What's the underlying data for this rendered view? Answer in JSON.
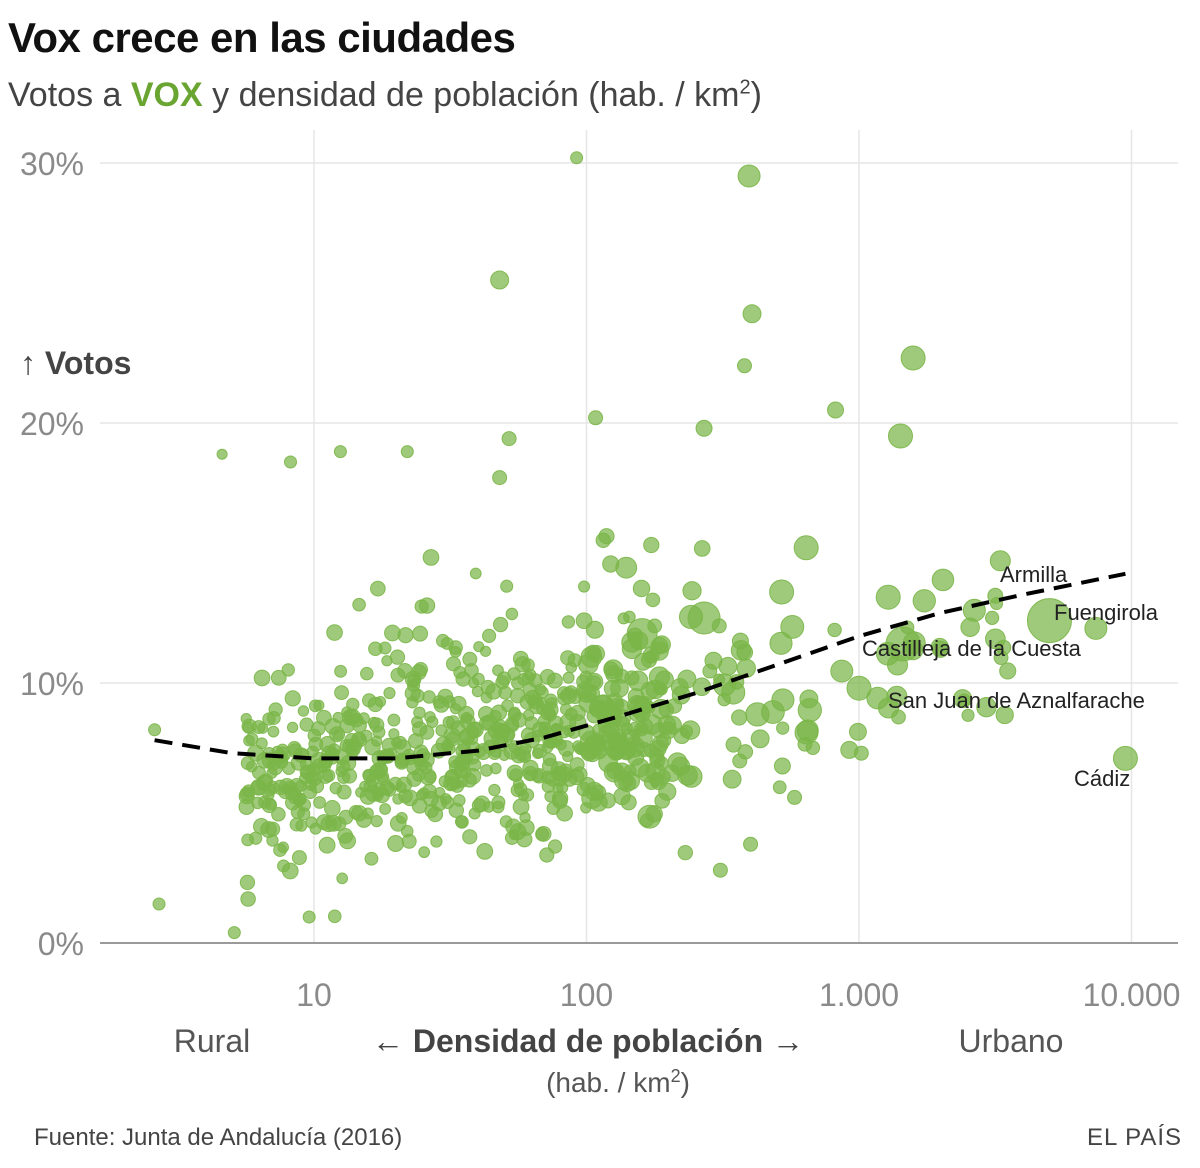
{
  "header": {
    "title": "Vox crece en las ciudades",
    "subtitle_pre": "Votos a ",
    "subtitle_brand": "VOX",
    "subtitle_post": " y densidad de población (hab. / km",
    "subtitle_sup": "2",
    "subtitle_end": ")"
  },
  "footer": {
    "source": "Fuente: Junta de Andalucía (2016)",
    "brand": "EL PAÍS"
  },
  "colors": {
    "points": "#7ab648",
    "trend": "#000000",
    "grid": "#e6e6e6",
    "axis": "#9a9a9a"
  },
  "chart_data": {
    "type": "scatter",
    "title": "Vox crece en las ciudades",
    "subtitle": "Votos a VOX y densidad de población (hab. / km2)",
    "xlabel": "Densidad de población",
    "xlabel_arrow_left": "←",
    "xlabel_arrow_right": "→",
    "xlabel_units_pre": "(hab. / km",
    "xlabel_units_sup": "2",
    "xlabel_units_end": ")",
    "ylabel": "Votos",
    "ylabel_arrow": "↑",
    "x_scale": "log",
    "xlim": [
      2,
      15000
    ],
    "ylim": [
      0,
      30
    ],
    "x_ticks": [
      {
        "value": 10,
        "label": "10"
      },
      {
        "value": 100,
        "label": "100"
      },
      {
        "value": 1000,
        "label": "1.000"
      },
      {
        "value": 10000,
        "label": "10.000"
      }
    ],
    "y_ticks": [
      {
        "value": 0,
        "label": "0%"
      },
      {
        "value": 10,
        "label": "10%"
      },
      {
        "value": 20,
        "label": "20%"
      },
      {
        "value": 30,
        "label": "30%"
      }
    ],
    "region_labels": {
      "left": "Rural",
      "right": "Urbano"
    },
    "trend_line": {
      "style": "dashed",
      "points": [
        [
          2.6,
          7.8
        ],
        [
          5,
          7.3
        ],
        [
          10,
          7.1
        ],
        [
          20,
          7.1
        ],
        [
          40,
          7.4
        ],
        [
          70,
          7.9
        ],
        [
          130,
          8.7
        ],
        [
          250,
          9.6
        ],
        [
          500,
          10.7
        ],
        [
          1000,
          11.8
        ],
        [
          2000,
          12.7
        ],
        [
          4000,
          13.4
        ],
        [
          9500,
          14.2
        ]
      ]
    },
    "labeled_points": [
      {
        "name": "Armilla",
        "x": 3300,
        "y": 14.7,
        "size": 10
      },
      {
        "name": "Fuengirola",
        "x": 5000,
        "y": 12.4,
        "size": 22
      },
      {
        "name": "Castilleja de la Cuesta",
        "x": 1450,
        "y": 11.5,
        "size": 17
      },
      {
        "name": "San Juan de Aznalfarache",
        "x": 2400,
        "y": 9.4,
        "size": 9
      },
      {
        "name": "Cádiz",
        "x": 9500,
        "y": 7.1,
        "size": 12
      }
    ],
    "notable_points": [
      {
        "x": 92,
        "y": 30.2,
        "size": 6
      },
      {
        "x": 395,
        "y": 29.5,
        "size": 11
      },
      {
        "x": 48,
        "y": 25.5,
        "size": 9
      },
      {
        "x": 405,
        "y": 24.2,
        "size": 9
      },
      {
        "x": 1580,
        "y": 22.5,
        "size": 12
      },
      {
        "x": 380,
        "y": 22.2,
        "size": 7
      },
      {
        "x": 820,
        "y": 20.5,
        "size": 8
      },
      {
        "x": 1420,
        "y": 19.5,
        "size": 12
      },
      {
        "x": 108,
        "y": 20.2,
        "size": 7
      },
      {
        "x": 52,
        "y": 19.4,
        "size": 7
      },
      {
        "x": 4.6,
        "y": 18.8,
        "size": 5
      },
      {
        "x": 8.2,
        "y": 18.5,
        "size": 6
      },
      {
        "x": 12.5,
        "y": 18.9,
        "size": 6
      },
      {
        "x": 22,
        "y": 18.9,
        "size": 6
      },
      {
        "x": 270,
        "y": 19.8,
        "size": 8
      },
      {
        "x": 48,
        "y": 17.9,
        "size": 7
      },
      {
        "x": 640,
        "y": 15.2,
        "size": 12
      },
      {
        "x": 520,
        "y": 13.5,
        "size": 12
      },
      {
        "x": 270,
        "y": 12.5,
        "size": 16
      },
      {
        "x": 160,
        "y": 11.9,
        "size": 15
      },
      {
        "x": 1280,
        "y": 13.3,
        "size": 12
      },
      {
        "x": 1000,
        "y": 9.8,
        "size": 12
      },
      {
        "x": 1020,
        "y": 7.3,
        "size": 7
      },
      {
        "x": 7400,
        "y": 12.1,
        "size": 11
      },
      {
        "x": 2650,
        "y": 12.8,
        "size": 11
      },
      {
        "x": 580,
        "y": 5.6,
        "size": 7
      },
      {
        "x": 400,
        "y": 3.8,
        "size": 7
      },
      {
        "x": 310,
        "y": 2.8,
        "size": 7
      },
      {
        "x": 5.1,
        "y": 0.4,
        "size": 6
      },
      {
        "x": 2.6,
        "y": 8.2,
        "size": 6
      },
      {
        "x": 2.7,
        "y": 1.5,
        "size": 6
      },
      {
        "x": 9.6,
        "y": 1.0,
        "size": 6
      }
    ],
    "bulk_note": "Approx. 700 additional municipalities, mostly between 5 and 200 hab/km2 and 2%-12% of votes (individual values not labeled)."
  }
}
